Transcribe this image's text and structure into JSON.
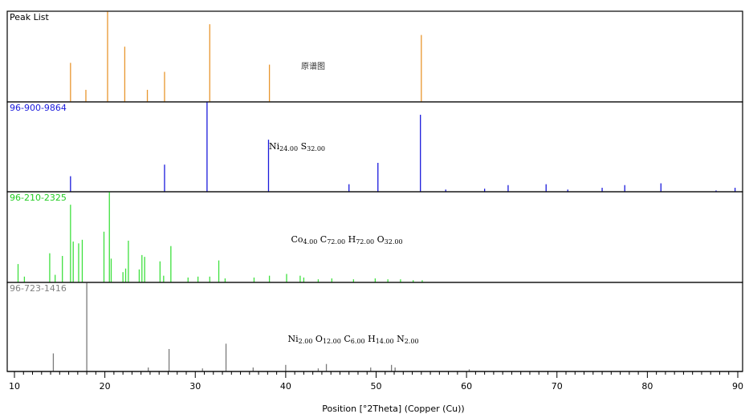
{
  "chart_data": {
    "type": "bar",
    "xlabel": "Position [°2Theta] (Copper (Cu))",
    "xlim": [
      10,
      90
    ],
    "xticks": [
      10,
      20,
      30,
      40,
      50,
      60,
      70,
      80,
      90
    ],
    "xtick_labels": [
      "10",
      "20",
      "30",
      "40",
      "50",
      "60",
      "70",
      "80",
      "90"
    ],
    "grid": false,
    "panels": [
      {
        "name": "Peak List",
        "label_color": "#000000",
        "color": "#E8962E",
        "annotation": [
          {
            "text": "原谱图"
          }
        ],
        "x": [
          16.2,
          17.9,
          20.3,
          22.2,
          24.7,
          26.6,
          31.6,
          38.2,
          55.0
        ],
        "y": [
          43,
          13,
          100,
          61,
          13,
          33,
          86,
          41,
          74
        ]
      },
      {
        "name": "96-900-9864",
        "label_color": "#1A1ADC",
        "color": "#1A1ADC",
        "annotation": [
          {
            "text": "Ni",
            "sub": "24.00"
          },
          {
            "text": "S",
            "sub": "32.00"
          }
        ],
        "x": [
          16.2,
          26.6,
          31.3,
          38.1,
          47.0,
          50.2,
          54.9,
          57.7,
          62.0,
          64.6,
          68.8,
          71.2,
          75.0,
          77.5,
          81.5,
          87.6,
          89.7
        ],
        "y": [
          17,
          30,
          100,
          58,
          8,
          32,
          86,
          2,
          3,
          7,
          8,
          2,
          4,
          7,
          9,
          1,
          4
        ]
      },
      {
        "name": "96-210-2325",
        "label_color": "#22CC22",
        "color": "#3EE03E",
        "annotation": [
          {
            "text": "Co",
            "sub": "4.00"
          },
          {
            "text": "C",
            "sub": "72.00"
          },
          {
            "text": "H",
            "sub": "72.00"
          },
          {
            "text": "O",
            "sub": "32.00"
          }
        ],
        "x": [
          10.4,
          11.1,
          13.9,
          14.5,
          15.3,
          16.2,
          16.5,
          17.1,
          17.5,
          19.9,
          20.5,
          20.7,
          22.0,
          22.3,
          22.6,
          23.8,
          24.1,
          24.4,
          26.1,
          26.5,
          27.3,
          29.2,
          30.3,
          31.6,
          32.6,
          33.3,
          36.5,
          38.2,
          40.1,
          41.6,
          42.0,
          43.6,
          45.1,
          47.5,
          49.9,
          51.3,
          52.7,
          54.1,
          55.1
        ],
        "y": [
          20,
          6,
          32,
          8,
          29,
          86,
          45,
          43,
          47,
          56,
          100,
          26,
          11,
          15,
          46,
          14,
          30,
          28,
          23,
          7,
          40,
          5,
          6,
          6,
          24,
          4,
          5,
          7,
          9,
          7,
          5,
          3,
          4,
          3,
          4,
          3,
          3,
          2,
          2
        ]
      },
      {
        "name": "96-723-1416",
        "label_color": "#808080",
        "color": "#7A7A7A",
        "annotation": [
          {
            "text": "Ni",
            "sub": "2.00"
          },
          {
            "text": "O",
            "sub": "12.00"
          },
          {
            "text": "C",
            "sub": "6.00"
          },
          {
            "text": "H",
            "sub": "14.00"
          },
          {
            "text": "N",
            "sub": "2.00"
          }
        ],
        "x": [
          14.3,
          18.0,
          24.8,
          27.1,
          30.8,
          33.4,
          36.4,
          40.0,
          43.6,
          44.5,
          49.4,
          51.7,
          52.1,
          60.3
        ],
        "y": [
          20,
          100,
          4,
          25,
          3,
          31,
          4,
          7,
          3,
          8,
          4,
          7,
          4,
          2
        ]
      }
    ]
  }
}
